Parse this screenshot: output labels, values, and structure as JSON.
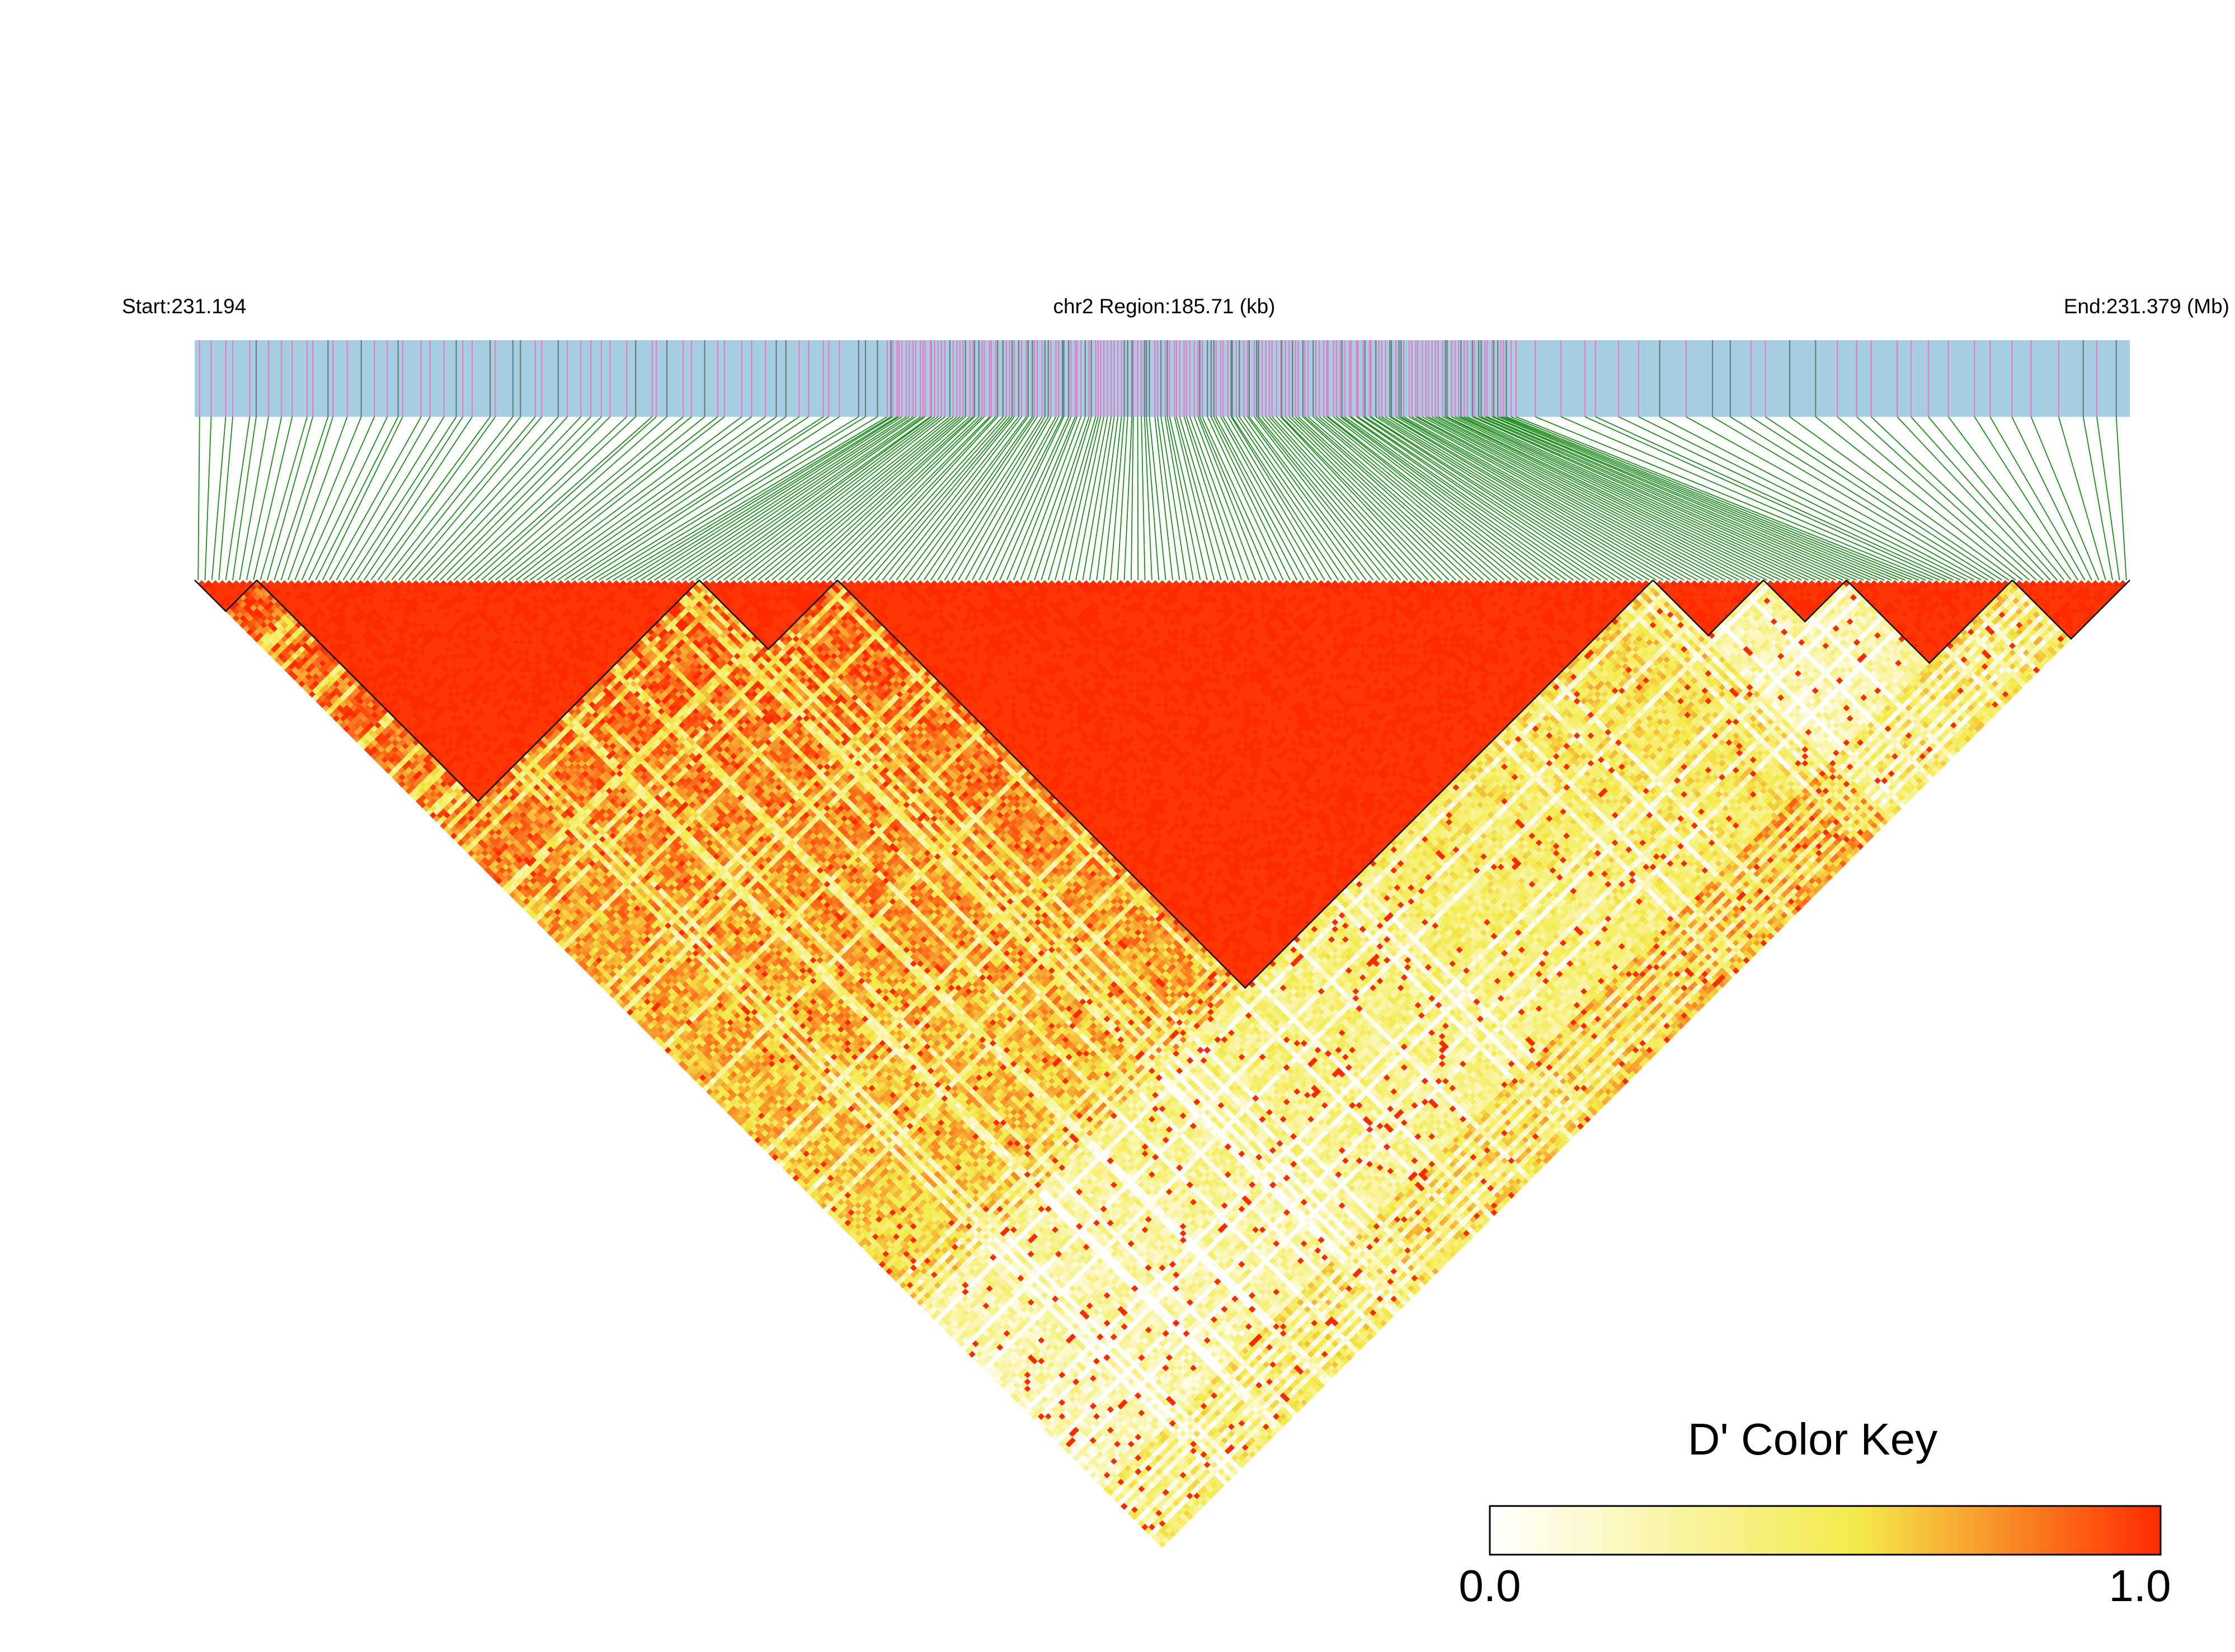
{
  "header": {
    "start_label": "Start:231.194",
    "region_label": "chr2 Region:185.71 (kb)",
    "end_label": "End:231.379 (Mb)"
  },
  "legend": {
    "title": "D' Color Key",
    "min_label": "0.0",
    "max_label": "1.0",
    "stops": [
      "#ffffff",
      "#f3ea4a",
      "#ff2a00"
    ]
  },
  "colors": {
    "track_bg": "#a6cee3",
    "marker_pink": "#e879c4",
    "marker_gray": "#6b7b7b",
    "connector_green": "#1a8c1a",
    "high_ld": "#ff1a00",
    "mid_ld": "#f5e84a",
    "low_ld": "#ffffff",
    "block_outline": "#000000"
  },
  "chart_data": {
    "type": "heatmap",
    "region": {
      "chromosome": "chr2",
      "start_mb": 231.194,
      "end_mb": 231.379,
      "length_kb": 185.71
    },
    "n_snps": 280,
    "value_range": [
      0.0,
      1.0
    ],
    "metric": "D'",
    "snp_density_segments": [
      {
        "from_mb": 231.194,
        "to_mb": 231.26,
        "snp_count": 60
      },
      {
        "from_mb": 231.26,
        "to_mb": 231.32,
        "snp_count": 190
      },
      {
        "from_mb": 231.32,
        "to_mb": 231.379,
        "snp_count": 30
      }
    ],
    "ld_blocks_snp_index": [
      [
        0,
        8
      ],
      [
        9,
        72
      ],
      [
        73,
        92
      ],
      [
        93,
        210
      ],
      [
        211,
        226
      ],
      [
        227,
        238
      ],
      [
        239,
        262
      ],
      [
        263,
        279
      ]
    ],
    "approx_dprime_profile": [
      {
        "snp_range": [
          0,
          92
        ],
        "typical_dprime": 0.9
      },
      {
        "snp_range": [
          93,
          210
        ],
        "typical_dprime": 0.85
      },
      {
        "snp_range": [
          211,
          262
        ],
        "typical_dprime": 0.3
      },
      {
        "snp_range": [
          263,
          279
        ],
        "typical_dprime": 0.8
      }
    ]
  }
}
